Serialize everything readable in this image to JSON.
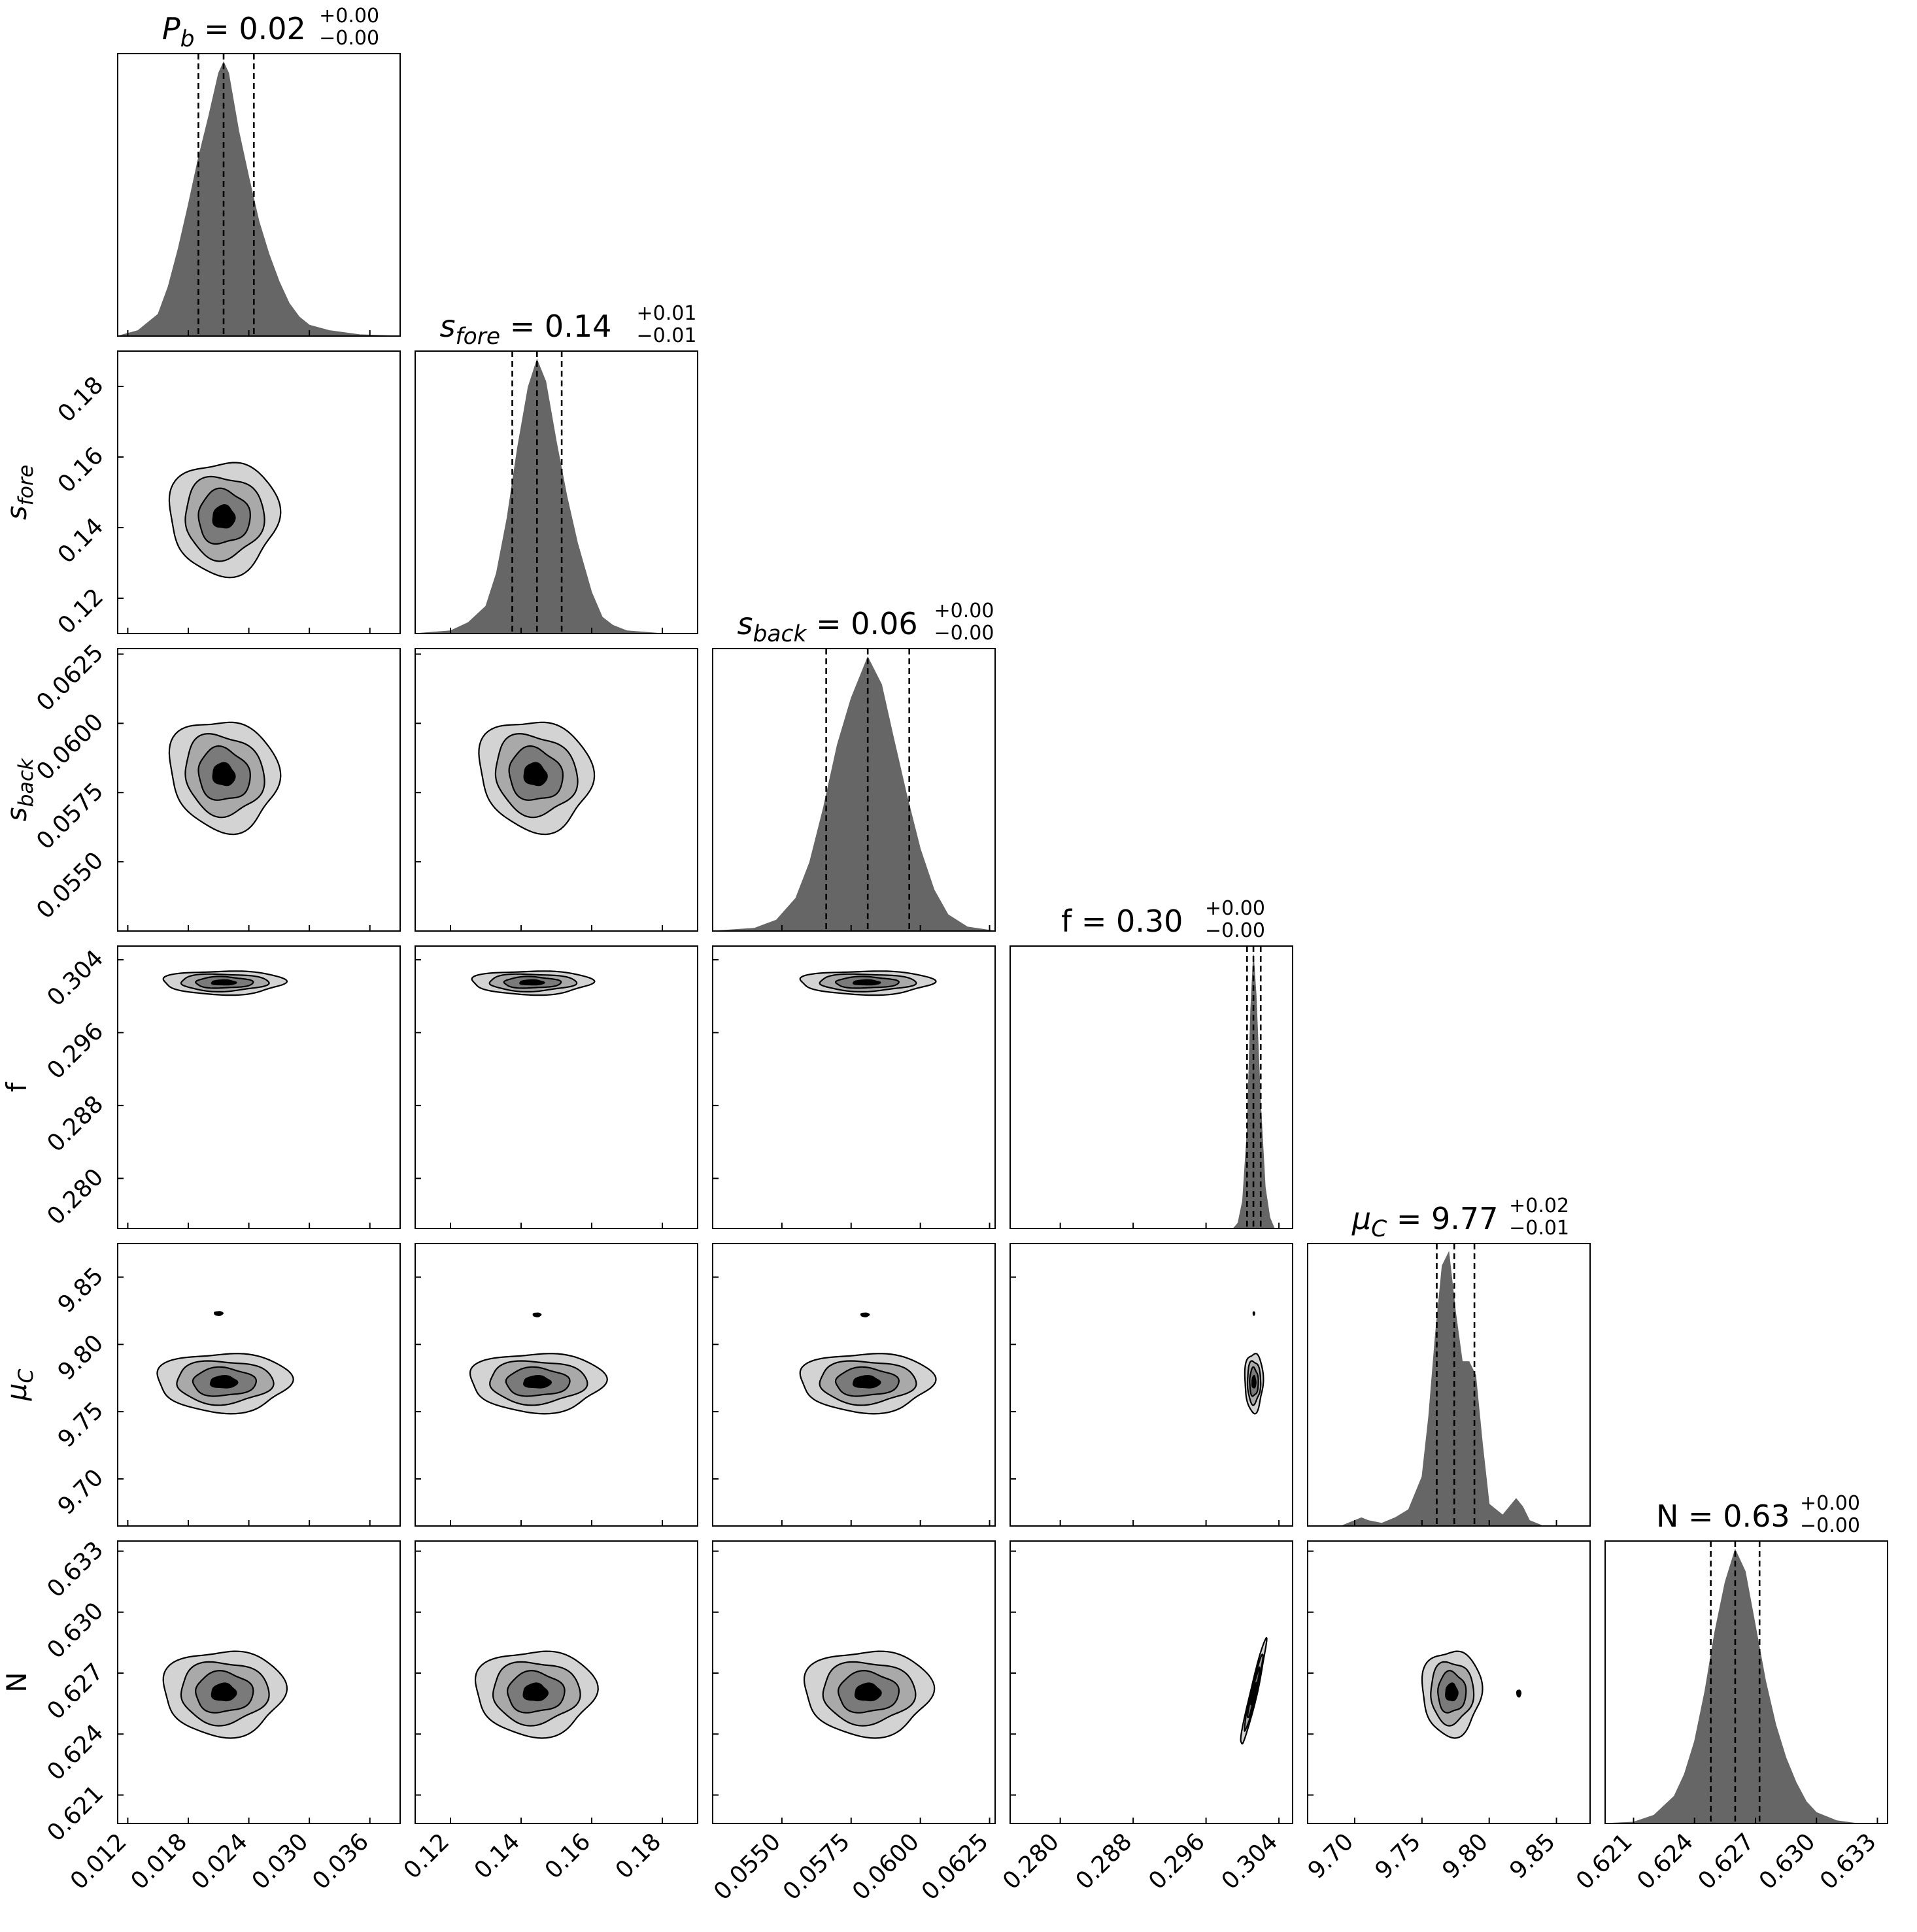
{
  "colors": {
    "hist_fill": "#666666",
    "contour_levels": [
      "#d3d3d3",
      "#a9a9a9",
      "#7a7a7a",
      "#000000"
    ],
    "line": "#000000",
    "background": "#ffffff"
  },
  "chart_data": {
    "type": "corner",
    "grid": false,
    "parameters": [
      {
        "key": "Pb",
        "label_base": "P",
        "label_sub": "b",
        "range": [
          0.011,
          0.039
        ],
        "ticks": [
          0.012,
          0.018,
          0.024,
          0.03,
          0.036
        ],
        "tick_labels": [
          "0.012",
          "0.018",
          "0.024",
          "0.030",
          "0.036"
        ],
        "median": 0.0215,
        "q16": 0.019,
        "q84": 0.0245,
        "title_value": "0.02",
        "title_plus": "+0.00",
        "title_minus": "−0.00",
        "hist": {
          "x": [
            0.011,
            0.013,
            0.015,
            0.016,
            0.017,
            0.018,
            0.019,
            0.02,
            0.021,
            0.0215,
            0.022,
            0.023,
            0.024,
            0.025,
            0.026,
            0.027,
            0.028,
            0.029,
            0.03,
            0.032,
            0.035,
            0.039
          ],
          "y": [
            0.0,
            0.02,
            0.08,
            0.18,
            0.32,
            0.48,
            0.65,
            0.8,
            0.96,
            1.0,
            0.96,
            0.75,
            0.58,
            0.42,
            0.3,
            0.2,
            0.12,
            0.07,
            0.04,
            0.02,
            0.005,
            0.0
          ]
        }
      },
      {
        "key": "s_fore",
        "label_base": "s",
        "label_sub": "fore",
        "range": [
          0.11,
          0.19
        ],
        "ticks": [
          0.12,
          0.14,
          0.16,
          0.18
        ],
        "tick_labels": [
          "0.12",
          "0.14",
          "0.16",
          "0.18"
        ],
        "median": 0.1445,
        "q16": 0.1375,
        "q84": 0.1515,
        "title_value": "0.14",
        "title_plus": "+0.01",
        "title_minus": "−0.01",
        "hist": {
          "x": [
            0.11,
            0.12,
            0.125,
            0.13,
            0.133,
            0.136,
            0.139,
            0.142,
            0.1445,
            0.147,
            0.15,
            0.153,
            0.156,
            0.16,
            0.163,
            0.166,
            0.17,
            0.18,
            0.19
          ],
          "y": [
            0.0,
            0.01,
            0.04,
            0.1,
            0.22,
            0.42,
            0.68,
            0.9,
            1.0,
            0.92,
            0.7,
            0.5,
            0.33,
            0.15,
            0.06,
            0.03,
            0.01,
            0.0,
            0.0
          ]
        }
      },
      {
        "key": "s_back",
        "label_base": "s",
        "label_sub": "back",
        "range": [
          0.0525,
          0.0627
        ],
        "ticks": [
          0.055,
          0.0575,
          0.06,
          0.0625
        ],
        "tick_labels": [
          "0.0550",
          "0.0575",
          "0.0600",
          "0.0625"
        ],
        "median": 0.0581,
        "q16": 0.0566,
        "q84": 0.0596,
        "title_value": "0.06",
        "title_plus": "+0.00",
        "title_minus": "−0.00",
        "hist": {
          "x": [
            0.0525,
            0.054,
            0.0548,
            0.0555,
            0.056,
            0.0565,
            0.057,
            0.0575,
            0.0581,
            0.0586,
            0.059,
            0.0595,
            0.06,
            0.0605,
            0.061,
            0.0617,
            0.0627
          ],
          "y": [
            0.0,
            0.01,
            0.04,
            0.12,
            0.25,
            0.45,
            0.68,
            0.85,
            1.0,
            0.9,
            0.72,
            0.5,
            0.3,
            0.15,
            0.06,
            0.015,
            0.0
          ]
        }
      },
      {
        "key": "f",
        "label_base": "f",
        "label_sub": "",
        "range": [
          0.2745,
          0.3055
        ],
        "ticks": [
          0.28,
          0.288,
          0.296,
          0.304
        ],
        "tick_labels": [
          "0.280",
          "0.288",
          "0.296",
          "0.304"
        ],
        "median": 0.3012,
        "q16": 0.3005,
        "q84": 0.302,
        "title_value": "0.30",
        "title_plus": "+0.00",
        "title_minus": "−0.00",
        "hist": {
          "x": [
            0.2745,
            0.299,
            0.2995,
            0.3,
            0.3005,
            0.3009,
            0.3012,
            0.3015,
            0.302,
            0.3025,
            0.303,
            0.3035,
            0.3055
          ],
          "y": [
            0.0,
            0.0,
            0.02,
            0.1,
            0.35,
            0.8,
            1.0,
            0.85,
            0.45,
            0.15,
            0.04,
            0.0,
            0.0
          ]
        }
      },
      {
        "key": "mu_C",
        "label_base": "μ",
        "label_sub": "C",
        "range": [
          9.665,
          9.875
        ],
        "ticks": [
          9.7,
          9.75,
          9.8,
          9.85
        ],
        "tick_labels": [
          "9.70",
          "9.75",
          "9.80",
          "9.85"
        ],
        "median": 9.774,
        "q16": 9.761,
        "q84": 9.789,
        "title_value": "9.77",
        "title_plus": "+0.02",
        "title_minus": "−0.01",
        "hist": {
          "x": [
            9.665,
            9.69,
            9.7,
            9.705,
            9.71,
            9.72,
            9.73,
            9.74,
            9.75,
            9.755,
            9.76,
            9.765,
            9.77,
            9.775,
            9.78,
            9.785,
            9.79,
            9.795,
            9.8,
            9.81,
            9.815,
            9.82,
            9.825,
            9.83,
            9.84,
            9.875
          ],
          "y": [
            0.0,
            0.0,
            0.02,
            0.03,
            0.02,
            0.01,
            0.03,
            0.06,
            0.18,
            0.4,
            0.7,
            0.95,
            1.0,
            0.78,
            0.6,
            0.6,
            0.55,
            0.3,
            0.08,
            0.04,
            0.07,
            0.1,
            0.07,
            0.02,
            0.0,
            0.0
          ]
        }
      },
      {
        "key": "N",
        "label_base": "N",
        "label_sub": "",
        "range": [
          0.6196,
          0.6335
        ],
        "ticks": [
          0.621,
          0.624,
          0.627,
          0.63,
          0.633
        ],
        "tick_labels": [
          "0.621",
          "0.624",
          "0.627",
          "0.630",
          "0.633"
        ],
        "median": 0.626,
        "q16": 0.6248,
        "q84": 0.6272,
        "title_value": "0.63",
        "title_plus": "+0.00",
        "title_minus": "−0.00",
        "hist": {
          "x": [
            0.6196,
            0.621,
            0.622,
            0.623,
            0.6235,
            0.624,
            0.6245,
            0.625,
            0.6255,
            0.626,
            0.6265,
            0.627,
            0.6275,
            0.628,
            0.6285,
            0.629,
            0.6295,
            0.63,
            0.631,
            0.632,
            0.6335
          ],
          "y": [
            0.0,
            0.005,
            0.03,
            0.1,
            0.18,
            0.3,
            0.48,
            0.7,
            0.88,
            1.0,
            0.92,
            0.72,
            0.52,
            0.36,
            0.24,
            0.15,
            0.08,
            0.04,
            0.01,
            0.0,
            0.0
          ]
        }
      }
    ],
    "contours": {
      "1-0": {
        "center": [
          0.0215,
          0.143
        ],
        "sx": 0.0027,
        "sy": 0.008,
        "rho": 0.0,
        "alt": []
      },
      "2-0": {
        "center": [
          0.0215,
          0.05815
        ],
        "sx": 0.0027,
        "sy": 0.001,
        "rho": -0.1,
        "alt": []
      },
      "2-1": {
        "center": [
          0.144,
          0.05815
        ],
        "sx": 0.008,
        "sy": 0.001,
        "rho": -0.1,
        "alt": []
      },
      "3-0": {
        "center": [
          0.0215,
          0.3015
        ],
        "sx": 0.003,
        "sy": 0.00065,
        "rho": 0.0,
        "alt": []
      },
      "3-1": {
        "center": [
          0.143,
          0.3015
        ],
        "sx": 0.0085,
        "sy": 0.00065,
        "rho": 0.0,
        "alt": []
      },
      "3-2": {
        "center": [
          0.05805,
          0.3015
        ],
        "sx": 0.0012,
        "sy": 0.00065,
        "rho": 0.0,
        "alt": []
      },
      "4-0": {
        "center": [
          0.0215,
          9.772
        ],
        "sx": 0.0033,
        "sy": 0.011,
        "rho": 0.0,
        "alt": [
          [
            0.021,
            9.823,
            0.001,
            0.0032
          ]
        ]
      },
      "4-1": {
        "center": [
          0.1445,
          9.772
        ],
        "sx": 0.0095,
        "sy": 0.011,
        "rho": 0.0,
        "alt": [
          [
            0.1445,
            9.822,
            0.0026,
            0.003
          ]
        ]
      },
      "4-2": {
        "center": [
          0.05805,
          9.772
        ],
        "sx": 0.0012,
        "sy": 0.011,
        "rho": 0.0,
        "alt": [
          [
            0.058,
            9.822,
            0.00035,
            0.003
          ]
        ]
      },
      "4-3": {
        "center": [
          0.30125,
          9.772
        ],
        "sx": 0.0005,
        "sy": 0.011,
        "rho": 0.0,
        "alt": [
          [
            0.30125,
            9.823,
            0.00016,
            0.0028
          ]
        ]
      },
      "5-0": {
        "center": [
          0.0215,
          0.62605
        ],
        "sx": 0.003,
        "sy": 0.00105,
        "rho": 0.0,
        "alt": []
      },
      "5-1": {
        "center": [
          0.144,
          0.62605
        ],
        "sx": 0.0085,
        "sy": 0.00105,
        "rho": 0.0,
        "alt": []
      },
      "5-2": {
        "center": [
          0.0581,
          0.62605
        ],
        "sx": 0.00115,
        "sy": 0.00105,
        "rho": 0.0,
        "alt": []
      },
      "5-3": {
        "center": [
          0.3012,
          0.626
        ],
        "sx": 0.0007,
        "sy": 0.0013,
        "rho": 0.96,
        "alt": []
      },
      "5-4": {
        "center": [
          9.772,
          0.62605
        ],
        "sx": 0.011,
        "sy": 0.00105,
        "rho": 0.0,
        "alt": [
          [
            9.822,
            0.626,
            0.0035,
            0.0004
          ]
        ]
      }
    },
    "contour_scales": [
      2.0,
      1.45,
      0.95,
      0.4
    ]
  }
}
